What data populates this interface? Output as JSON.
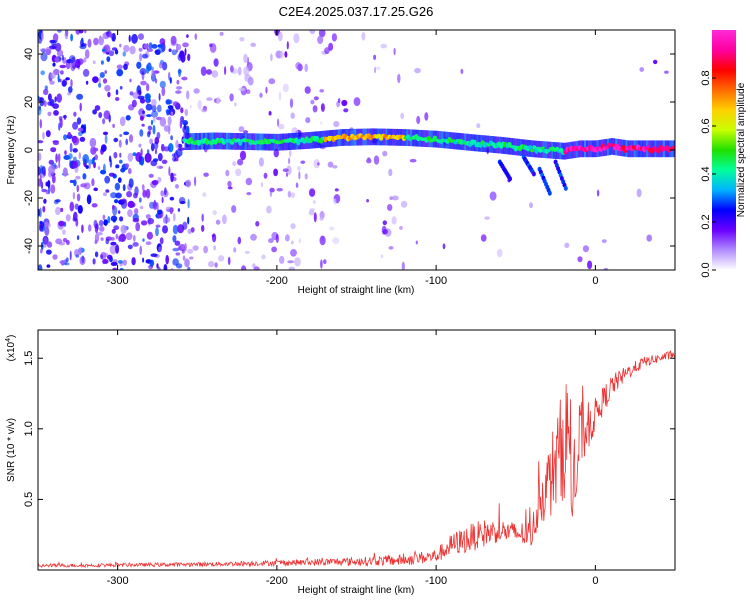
{
  "title": "C2E4.2025.037.17.25.G26",
  "chart_data": [
    {
      "type": "heatmap",
      "xlabel": "Height of straight line (km)",
      "ylabel": "Frequency (Hz)",
      "xlim": [
        -350,
        50
      ],
      "ylim": [
        -50,
        50
      ],
      "x_ticks": [
        -300,
        -200,
        -100,
        0
      ],
      "x_tick_labels": [
        "-300",
        "-200",
        "-100",
        "0"
      ],
      "y_ticks": [
        -40,
        -20,
        0,
        20,
        40
      ],
      "y_tick_labels": [
        "-40",
        "-20",
        "0",
        "20",
        "40"
      ],
      "grid": false,
      "ridge": {
        "x": [
          -255,
          -240,
          -220,
          -200,
          -180,
          -160,
          -140,
          -120,
          -100,
          -80,
          -60,
          -40,
          -20,
          -10,
          0,
          10,
          20,
          50
        ],
        "freq": [
          3.5,
          3.8,
          3.5,
          3.2,
          4.0,
          5.2,
          5.5,
          5.2,
          4.5,
          3.2,
          2.0,
          0.5,
          -0.5,
          0.5,
          0.5,
          1.5,
          0.5,
          0.5
        ]
      },
      "colorbar": {
        "label": "Normalized spectral amplitude",
        "range": [
          0,
          1
        ],
        "ticks": [
          0,
          0.2,
          0.4,
          0.6,
          0.8
        ],
        "tick_labels": [
          "0.0",
          "0.2",
          "0.4",
          "0.6",
          "0.8"
        ],
        "colors": [
          "#ffffff",
          "#b08cff",
          "#6a00ff",
          "#0000ff",
          "#00b4ff",
          "#00ff9a",
          "#20e000",
          "#c8ff00",
          "#ffd000",
          "#ff6a00",
          "#ff0000",
          "#ff00a0",
          "#ff2ad8"
        ]
      }
    },
    {
      "type": "line",
      "xlabel": "Height of straight line (km)",
      "ylabel": "SNR (10 * v/v)",
      "multiplier_label": "(x10",
      "multiplier_exponent": "4",
      "xlim": [
        -350,
        50
      ],
      "ylim": [
        0,
        1.7
      ],
      "x_ticks": [
        -300,
        -200,
        -100,
        0
      ],
      "x_tick_labels": [
        "-300",
        "-200",
        "-100",
        "0"
      ],
      "y_ticks": [
        0.5,
        1.0,
        1.5
      ],
      "y_tick_labels": [
        "0.5",
        "1.0",
        "1.5"
      ],
      "color": "#ee3333",
      "grid": false,
      "envelope": {
        "x": [
          -350,
          -300,
          -250,
          -200,
          -150,
          -120,
          -100,
          -90,
          -80,
          -70,
          -60,
          -50,
          -40,
          -35,
          -30,
          -25,
          -20,
          -17,
          -15,
          -12,
          -10,
          -5,
          0,
          10,
          20,
          30,
          40,
          50
        ],
        "mean": [
          0.03,
          0.035,
          0.04,
          0.05,
          0.06,
          0.07,
          0.1,
          0.18,
          0.22,
          0.26,
          0.28,
          0.26,
          0.25,
          0.5,
          0.6,
          0.75,
          0.9,
          1.0,
          0.6,
          0.6,
          0.95,
          1.0,
          1.1,
          1.3,
          1.4,
          1.47,
          1.5,
          1.53
        ],
        "spread": [
          0.012,
          0.012,
          0.015,
          0.02,
          0.03,
          0.04,
          0.05,
          0.08,
          0.1,
          0.1,
          0.08,
          0.08,
          0.1,
          0.18,
          0.25,
          0.35,
          0.4,
          0.45,
          0.3,
          0.3,
          0.25,
          0.18,
          0.12,
          0.08,
          0.05,
          0.04,
          0.03,
          0.03
        ]
      }
    }
  ]
}
